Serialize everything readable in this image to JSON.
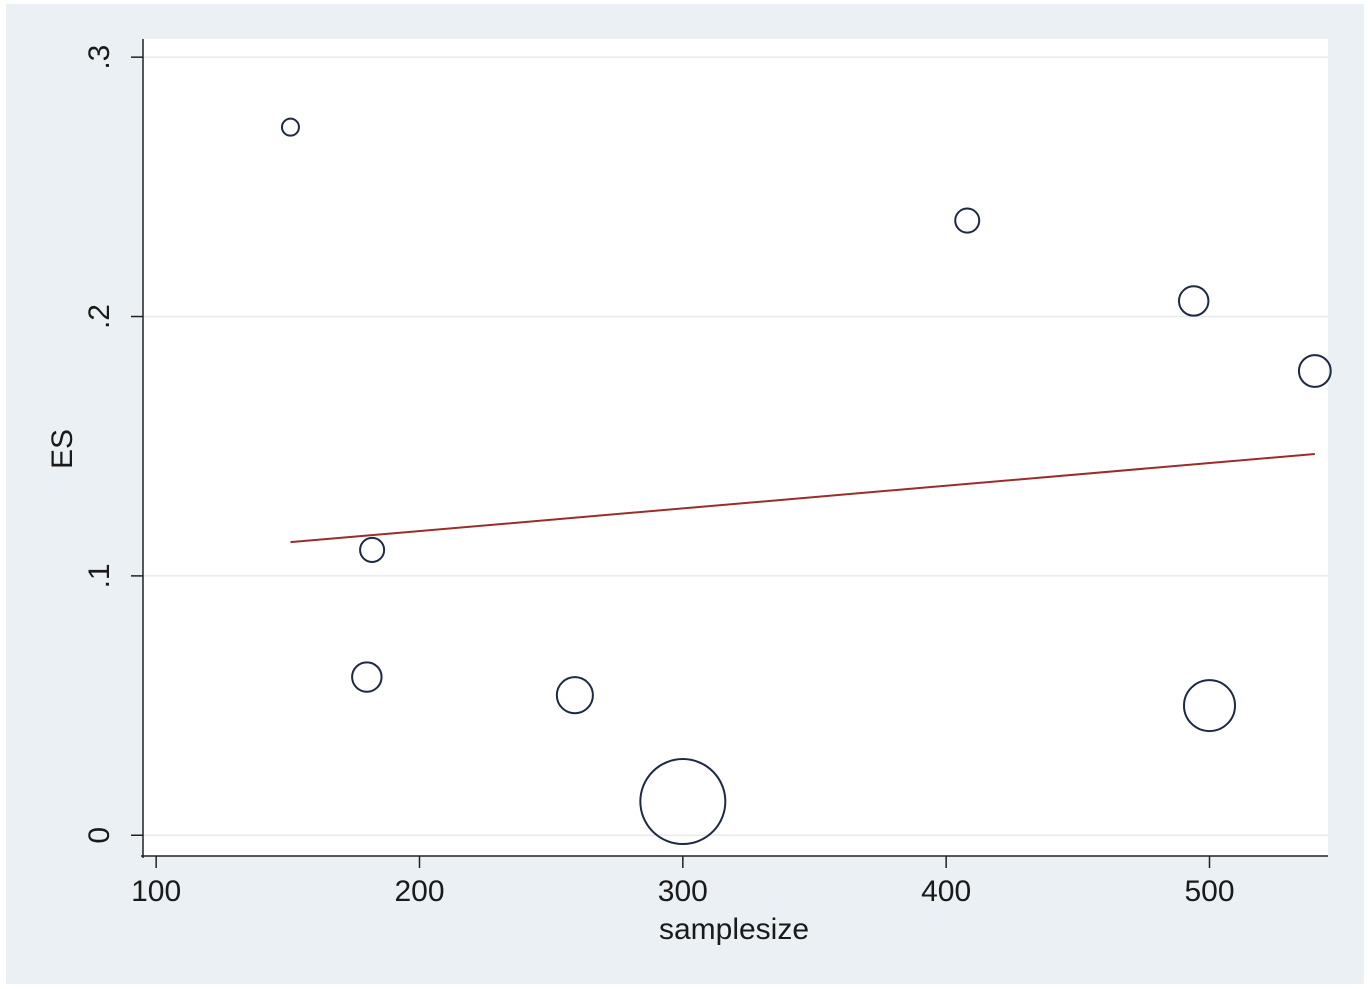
{
  "chart_data": {
    "type": "scatter",
    "xlabel": "samplesize",
    "ylabel": "ES",
    "xlim": [
      95,
      545
    ],
    "ylim": [
      -0.008,
      0.307
    ],
    "xticks": [
      {
        "value": 100,
        "label": "100"
      },
      {
        "value": 200,
        "label": "200"
      },
      {
        "value": 300,
        "label": "300"
      },
      {
        "value": 400,
        "label": "400"
      },
      {
        "value": 500,
        "label": "500"
      }
    ],
    "yticks": [
      {
        "value": 0,
        "label": "0"
      },
      {
        "value": 0.1,
        "label": ".1"
      },
      {
        "value": 0.2,
        "label": ".2"
      },
      {
        "value": 0.3,
        "label": ".3"
      }
    ],
    "grid": true,
    "points": [
      {
        "x": 151,
        "y": 0.273,
        "weight": 1
      },
      {
        "x": 182,
        "y": 0.11,
        "weight": 2
      },
      {
        "x": 180,
        "y": 0.061,
        "weight": 3
      },
      {
        "x": 259,
        "y": 0.054,
        "weight": 4.5
      },
      {
        "x": 300,
        "y": 0.013,
        "weight": 25
      },
      {
        "x": 408,
        "y": 0.237,
        "weight": 2
      },
      {
        "x": 494,
        "y": 0.206,
        "weight": 3
      },
      {
        "x": 500,
        "y": 0.05,
        "weight": 9
      },
      {
        "x": 540,
        "y": 0.179,
        "weight": 3.5
      }
    ],
    "fit_line": {
      "x": [
        151,
        540
      ],
      "y": [
        0.113,
        0.147
      ]
    },
    "colors": {
      "background": "#eaf0f3",
      "plot": "#ffffff",
      "grid": "#e6eaee",
      "marker": "#1c2a44",
      "fit_line": "#9b2c2c"
    }
  }
}
